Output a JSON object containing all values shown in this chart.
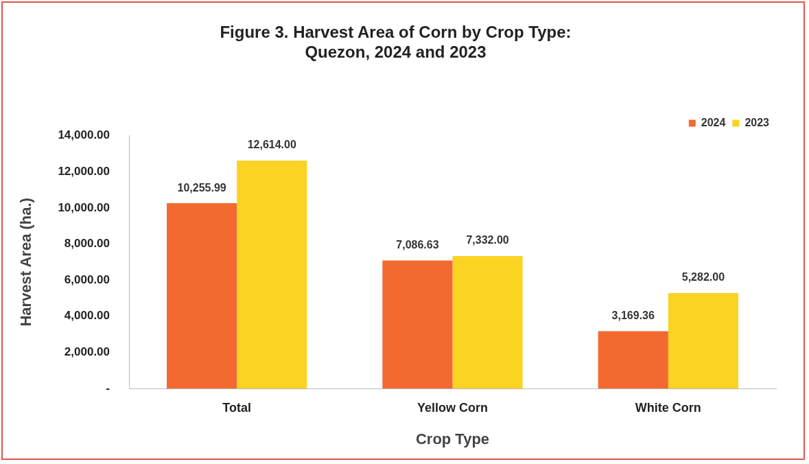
{
  "chart_data": {
    "type": "bar",
    "title": "Figure 3. Harvest Area of Corn by Crop Type:\nQuezon, 2024 and 2023",
    "xlabel": "Crop Type",
    "ylabel": "Harvest Area (ha.)",
    "categories": [
      "Total",
      "Yellow Corn",
      "White Corn"
    ],
    "series": [
      {
        "name": "2024",
        "color": "#f26a30",
        "values": [
          10255.99,
          7086.63,
          3169.36
        ],
        "value_labels": [
          "10,255.99",
          "7,086.63",
          "3,169.36"
        ]
      },
      {
        "name": "2023",
        "color": "#fbd323",
        "values": [
          12614,
          7332,
          5282
        ],
        "value_labels": [
          "12,614.00",
          "7,332.00",
          "5,282.00"
        ]
      }
    ],
    "ylim": [
      0,
      14000
    ],
    "yticks": [
      {
        "value": 0,
        "label": "-"
      },
      {
        "value": 2000,
        "label": "2,000.00"
      },
      {
        "value": 4000,
        "label": "4,000.00"
      },
      {
        "value": 6000,
        "label": "6,000.00"
      },
      {
        "value": 8000,
        "label": "8,000.00"
      },
      {
        "value": 10000,
        "label": "10,000.00"
      },
      {
        "value": 12000,
        "label": "12,000.00"
      },
      {
        "value": 14000,
        "label": "14,000.00"
      }
    ],
    "grid": false,
    "legend": "top right"
  }
}
